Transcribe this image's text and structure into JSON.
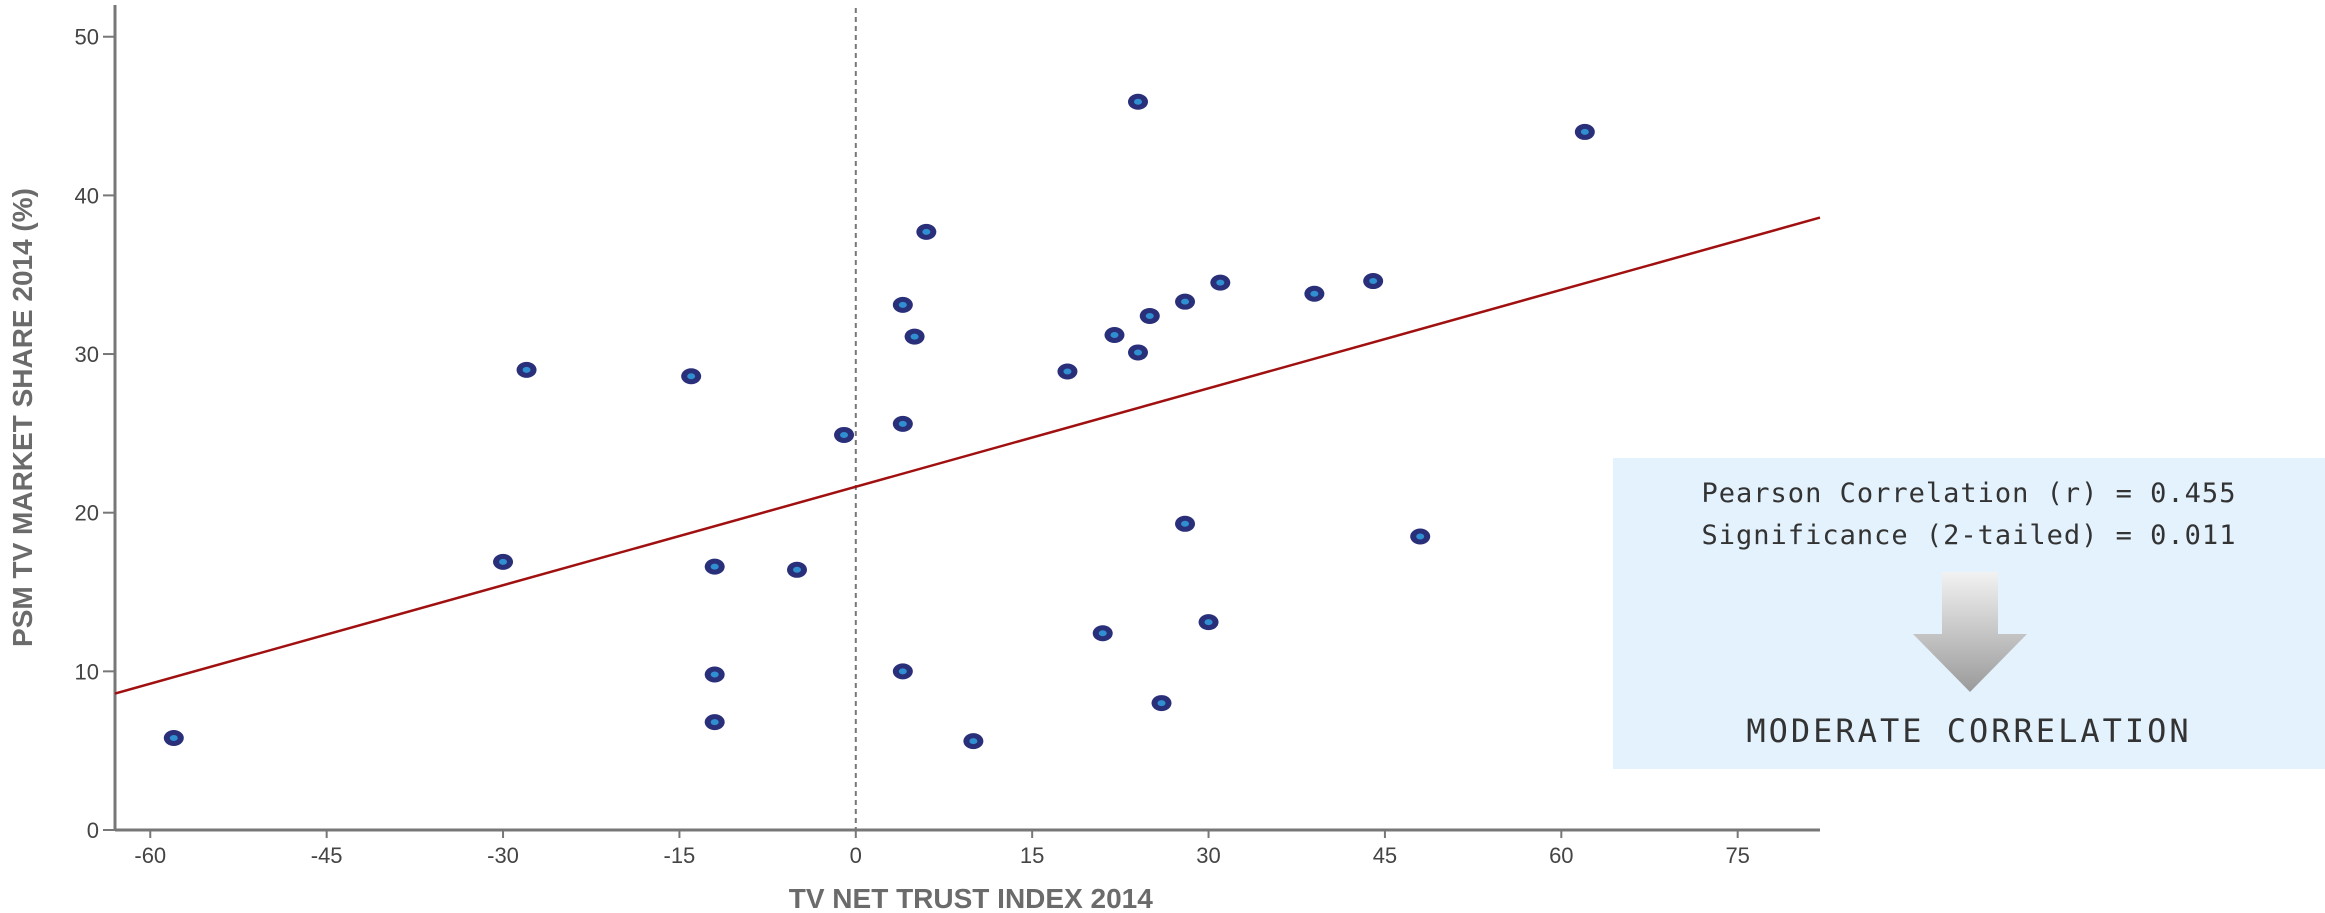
{
  "chart_data": {
    "type": "scatter",
    "title": "",
    "xlabel": "TV NET TRUST INDEX 2014",
    "ylabel": "PSM TV MARKET SHARE 2014 (%)",
    "xlim": [
      -63,
      82
    ],
    "ylim": [
      0,
      52
    ],
    "x_ticks": [
      -60,
      -45,
      -30,
      -15,
      0,
      15,
      30,
      45,
      60,
      75
    ],
    "y_ticks": [
      0,
      10,
      20,
      30,
      40,
      50
    ],
    "reference_line_x": 0,
    "grid": false,
    "colors": {
      "point_fill": "#2a2f7a",
      "point_center": "#2f8fd0",
      "trendline": "#a01010",
      "axis": "#777777"
    },
    "points": [
      {
        "x": -58,
        "y": 5.8
      },
      {
        "x": -30,
        "y": 16.9
      },
      {
        "x": -28,
        "y": 29.0
      },
      {
        "x": -14,
        "y": 28.6
      },
      {
        "x": -12,
        "y": 16.6
      },
      {
        "x": -12,
        "y": 9.8
      },
      {
        "x": -12,
        "y": 6.8
      },
      {
        "x": -5,
        "y": 16.4
      },
      {
        "x": -1,
        "y": 24.9
      },
      {
        "x": 4,
        "y": 33.1
      },
      {
        "x": 4,
        "y": 25.6
      },
      {
        "x": 4,
        "y": 10.0
      },
      {
        "x": 5,
        "y": 31.1
      },
      {
        "x": 6,
        "y": 37.7
      },
      {
        "x": 10,
        "y": 5.6
      },
      {
        "x": 18,
        "y": 28.9
      },
      {
        "x": 21,
        "y": 12.4
      },
      {
        "x": 22,
        "y": 31.2
      },
      {
        "x": 24,
        "y": 45.9
      },
      {
        "x": 24,
        "y": 30.1
      },
      {
        "x": 25,
        "y": 32.4
      },
      {
        "x": 26,
        "y": 8.0
      },
      {
        "x": 28,
        "y": 33.3
      },
      {
        "x": 28,
        "y": 19.3
      },
      {
        "x": 30,
        "y": 13.1
      },
      {
        "x": 31,
        "y": 34.5
      },
      {
        "x": 39,
        "y": 33.8
      },
      {
        "x": 44,
        "y": 34.6
      },
      {
        "x": 48,
        "y": 18.5
      },
      {
        "x": 62,
        "y": 44.0
      }
    ],
    "trendline": {
      "x": [
        -63,
        82
      ],
      "y": [
        8.6,
        38.6
      ]
    }
  },
  "stats": {
    "pearson": "Pearson Correlation (r) = 0.455",
    "significance": "Significance (2-tailed) = 0.011",
    "conclusion": "MODERATE CORRELATION"
  }
}
